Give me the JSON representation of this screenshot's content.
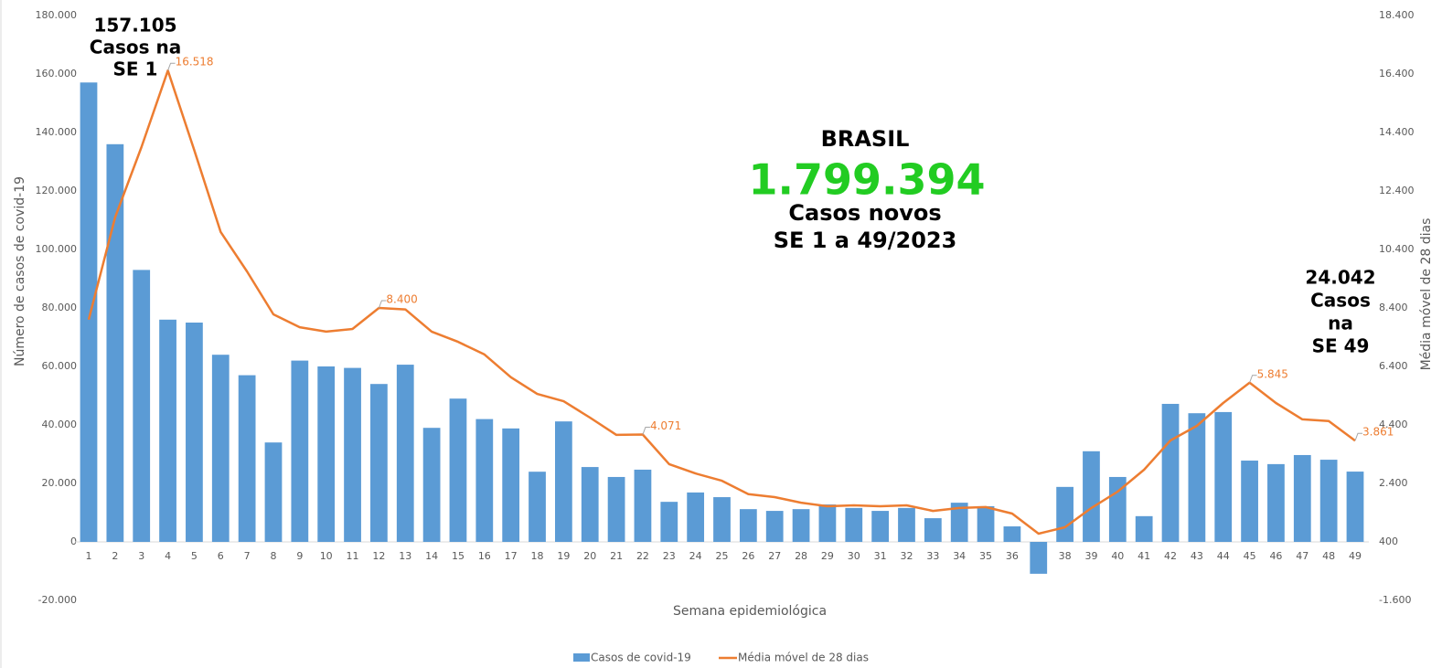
{
  "chart_data": {
    "type": "bar-line",
    "categories": [
      "1",
      "2",
      "3",
      "4",
      "5",
      "6",
      "7",
      "8",
      "9",
      "10",
      "11",
      "12",
      "13",
      "14",
      "15",
      "16",
      "17",
      "18",
      "19",
      "20",
      "21",
      "22",
      "23",
      "24",
      "25",
      "26",
      "27",
      "28",
      "29",
      "30",
      "31",
      "32",
      "33",
      "34",
      "35",
      "36",
      "37",
      "38",
      "39",
      "40",
      "41",
      "42",
      "43",
      "44",
      "45",
      "46",
      "47",
      "48",
      "49"
    ],
    "series": [
      {
        "name": "Casos de covid-19",
        "type": "bar",
        "axis": "y",
        "color": "#5b9bd5",
        "values": [
          157105,
          136000,
          93000,
          76000,
          75000,
          64000,
          57000,
          34000,
          62000,
          60000,
          59500,
          54000,
          60600,
          39000,
          49000,
          42000,
          38800,
          24000,
          41200,
          25600,
          22200,
          24700,
          13700,
          16900,
          15300,
          11200,
          10600,
          11200,
          12800,
          11600,
          10600,
          11600,
          8100,
          13400,
          12200,
          5300,
          -10900,
          18800,
          31000,
          22200,
          8800,
          47200,
          44000,
          44400,
          27800,
          26600,
          29700,
          28100,
          24042
        ]
      },
      {
        "name": "Média móvel de 28 dias",
        "type": "line",
        "axis": "y2",
        "color": "#ed7d31",
        "values": [
          8000,
          11500,
          13900,
          16518,
          13800,
          11000,
          9650,
          8180,
          7740,
          7590,
          7680,
          8400,
          8350,
          7590,
          7240,
          6810,
          6030,
          5460,
          5210,
          4650,
          4060,
          4071,
          3060,
          2740,
          2490,
          2030,
          1930,
          1740,
          1620,
          1650,
          1620,
          1650,
          1460,
          1560,
          1590,
          1370,
          680,
          900,
          1560,
          2120,
          2870,
          3870,
          4370,
          5150,
          5845,
          5150,
          4590,
          4530,
          3861
        ],
        "value_labels": [
          null,
          null,
          null,
          "16.518",
          null,
          null,
          null,
          null,
          null,
          null,
          null,
          "8.400",
          null,
          null,
          null,
          null,
          null,
          null,
          null,
          null,
          null,
          "4.071",
          null,
          null,
          null,
          null,
          null,
          null,
          null,
          null,
          null,
          null,
          null,
          null,
          null,
          null,
          null,
          null,
          null,
          null,
          null,
          null,
          null,
          null,
          "5.845",
          null,
          null,
          null,
          "3.861"
        ]
      }
    ],
    "xlabel": "Semana epidemiológica",
    "ylabel": "Número de casos de covid-19",
    "y2label": "Média móvel de 28 dias",
    "ylim": [
      -20000,
      180000
    ],
    "yticks": [
      {
        "value": -20000,
        "label": "-20.000"
      },
      0,
      {
        "value": 20000,
        "label": "20.000"
      },
      {
        "value": 40000,
        "label": "40.000"
      },
      {
        "value": 60000,
        "label": "60.000"
      },
      {
        "value": 80000,
        "label": "80.000"
      },
      {
        "value": 100000,
        "label": "100.000"
      },
      {
        "value": 120000,
        "label": "120.000"
      },
      {
        "value": 140000,
        "label": "140.000"
      },
      {
        "value": 160000,
        "label": "160.000"
      },
      {
        "value": 180000,
        "label": "180.000"
      }
    ],
    "y2lim": [
      -1600,
      18400
    ],
    "y2ticks": [
      {
        "value": -1600,
        "label": "-1.600"
      },
      400,
      {
        "value": 2400,
        "label": "2.400"
      },
      {
        "value": 4400,
        "label": "4.400"
      },
      {
        "value": 6400,
        "label": "6.400"
      },
      {
        "value": 8400,
        "label": "8.400"
      },
      {
        "value": 10400,
        "label": "10.400"
      },
      {
        "value": 12400,
        "label": "12.400"
      },
      {
        "value": 14400,
        "label": "14.400"
      },
      {
        "value": 16400,
        "label": "16.400"
      },
      {
        "value": 18400,
        "label": "18.400"
      }
    ],
    "grid": false,
    "legend": "bottom",
    "annotations": [
      {
        "lines": [
          "157.105",
          "Casos na",
          "SE 1"
        ]
      },
      {
        "lines": [
          "BRASIL"
        ]
      },
      {
        "lines": [
          "1.799.394"
        ],
        "color": "#22cc22"
      },
      {
        "lines": [
          "Casos novos",
          "SE 1 a 49/2023"
        ]
      },
      {
        "lines": [
          "24.042",
          "Casos",
          "na",
          "SE 49"
        ]
      }
    ]
  }
}
